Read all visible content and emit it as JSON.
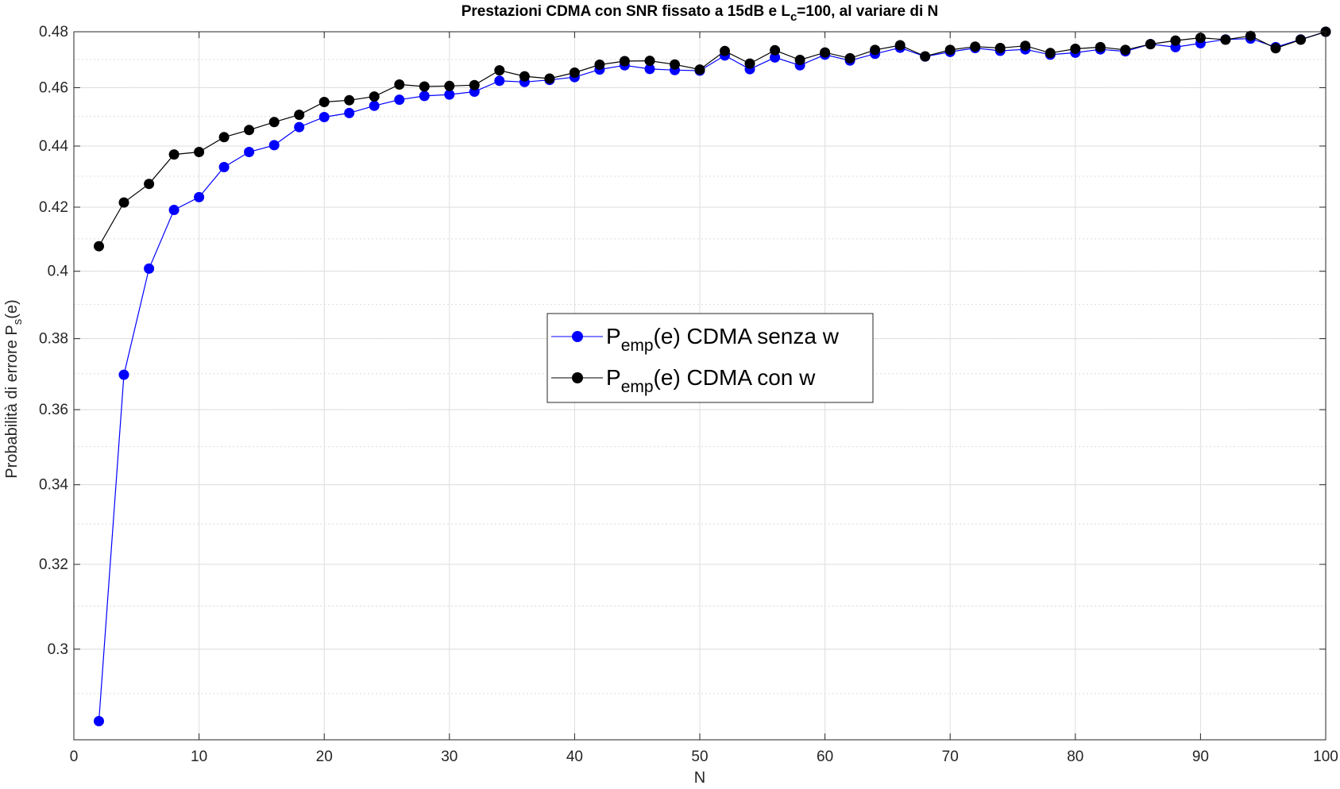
{
  "chart_data": {
    "type": "line",
    "title_parts": [
      "Prestazioni CDMA con SNR fissato a 15dB e L",
      "c",
      "=100, al variare di N"
    ],
    "xlabel": "N",
    "ylabel_parts": [
      "Probabilità di errore P",
      "s",
      "(e)"
    ],
    "xlim": [
      0,
      100
    ],
    "ylim": [
      0.28,
      0.48
    ],
    "y_scale": "log",
    "x_ticks": [
      0,
      10,
      20,
      30,
      40,
      50,
      60,
      70,
      80,
      90,
      100
    ],
    "y_ticks": [
      0.3,
      0.32,
      0.34,
      0.36,
      0.38,
      0.4,
      0.42,
      0.44,
      0.46,
      0.48
    ],
    "y_tick_labels": [
      "0.3",
      "0.32",
      "0.34",
      "0.36",
      "0.38",
      "0.4",
      "0.42",
      "0.44",
      "0.46",
      "0.48"
    ],
    "x_tick_labels": [
      "0",
      "10",
      "20",
      "30",
      "40",
      "50",
      "60",
      "70",
      "80",
      "90",
      "100"
    ],
    "grid": true,
    "legend_position": "center",
    "x": [
      2,
      4,
      6,
      8,
      10,
      12,
      14,
      16,
      18,
      20,
      22,
      24,
      26,
      28,
      30,
      32,
      34,
      36,
      38,
      40,
      42,
      44,
      46,
      48,
      50,
      52,
      54,
      56,
      58,
      60,
      62,
      64,
      66,
      68,
      70,
      72,
      74,
      76,
      78,
      80,
      82,
      84,
      86,
      88,
      90,
      92,
      94,
      96,
      98,
      100
    ],
    "series": [
      {
        "name_parts": [
          "P",
          "emp",
          "(e) CDMA senza w"
        ],
        "color": "#0000ff",
        "values": [
          0.284,
          0.3697,
          0.4008,
          0.4191,
          0.4232,
          0.433,
          0.438,
          0.4403,
          0.4464,
          0.4498,
          0.4512,
          0.4537,
          0.4558,
          0.4571,
          0.4576,
          0.4586,
          0.4624,
          0.462,
          0.4627,
          0.4637,
          0.4664,
          0.4679,
          0.4666,
          0.4662,
          0.466,
          0.4714,
          0.4665,
          0.4707,
          0.4679,
          0.4717,
          0.4696,
          0.472,
          0.4742,
          0.471,
          0.4727,
          0.4741,
          0.4731,
          0.4736,
          0.4717,
          0.4724,
          0.4736,
          0.4729,
          0.4755,
          0.4744,
          0.4758,
          0.4772,
          0.4775,
          0.4744,
          0.4772,
          0.48
        ]
      },
      {
        "name_parts": [
          "P",
          "emp",
          "(e) CDMA con w"
        ],
        "color": "#000000",
        "values": [
          0.4077,
          0.4215,
          0.4275,
          0.4372,
          0.438,
          0.443,
          0.4454,
          0.4481,
          0.4506,
          0.455,
          0.4556,
          0.4569,
          0.4611,
          0.4604,
          0.4606,
          0.4609,
          0.4661,
          0.464,
          0.4632,
          0.4653,
          0.4681,
          0.4694,
          0.4695,
          0.4682,
          0.4664,
          0.473,
          0.4685,
          0.4733,
          0.4698,
          0.4725,
          0.4704,
          0.4734,
          0.4751,
          0.4711,
          0.4734,
          0.4746,
          0.4741,
          0.4749,
          0.4723,
          0.4738,
          0.4744,
          0.4734,
          0.4755,
          0.4768,
          0.4778,
          0.4771,
          0.4785,
          0.474,
          0.4771,
          0.48
        ]
      }
    ]
  }
}
